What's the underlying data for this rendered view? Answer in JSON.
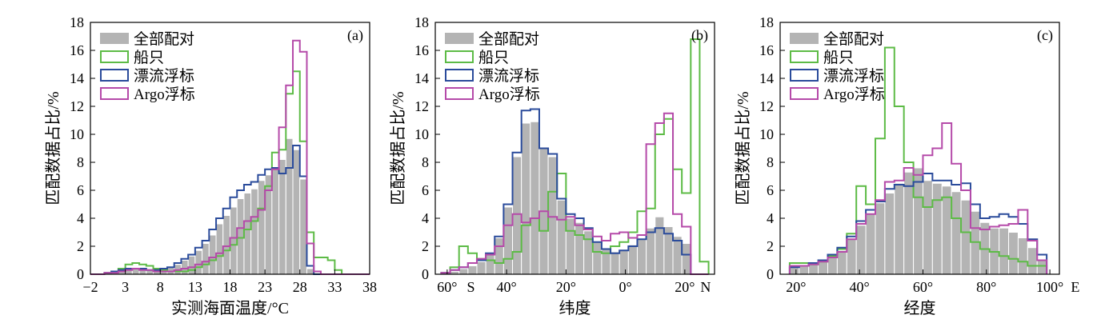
{
  "colors": {
    "all": "#b4b4b4",
    "ship": "#5dbb46",
    "drifter": "#2a4b9b",
    "argo": "#b54aa9"
  },
  "chart_data": [
    {
      "type": "bar",
      "panel_label": "(a)",
      "xlabel": "实测海面温度/°C",
      "ylabel": "匹配数据占比/%",
      "x_range": [
        -2,
        38
      ],
      "ylim": [
        0,
        18
      ],
      "y_ticks": [
        0,
        2,
        4,
        6,
        8,
        10,
        12,
        14,
        16,
        18
      ],
      "x_ticks": [
        {
          "value": -2,
          "label": "−2"
        },
        {
          "value": 3,
          "label": "3"
        },
        {
          "value": 8,
          "label": "8"
        },
        {
          "value": 13,
          "label": "13"
        },
        {
          "value": 18,
          "label": "18"
        },
        {
          "value": 23,
          "label": "23"
        },
        {
          "value": 28,
          "label": "28"
        },
        {
          "value": 33,
          "label": "33"
        },
        {
          "value": 38,
          "label": "38"
        }
      ],
      "bin_edges": [
        -2,
        -1,
        0,
        1,
        2,
        3,
        4,
        5,
        6,
        7,
        8,
        9,
        10,
        11,
        12,
        13,
        14,
        15,
        16,
        17,
        18,
        19,
        20,
        21,
        22,
        23,
        24,
        25,
        26,
        27,
        28,
        29,
        30,
        31,
        32,
        33,
        34,
        35,
        36,
        37,
        38
      ],
      "series": [
        {
          "name": "全部配对",
          "style": "bar",
          "color_key": "all",
          "values": [
            0,
            0,
            0.1,
            0.2,
            0.3,
            0.4,
            0.4,
            0.4,
            0.3,
            0.3,
            0.4,
            0.5,
            0.7,
            1.0,
            1.3,
            1.7,
            2.2,
            2.8,
            3.6,
            4.2,
            4.8,
            5.4,
            5.8,
            6.1,
            6.7,
            7.1,
            7.5,
            8.2,
            9.7,
            8.9,
            6.8,
            0.4,
            0.1,
            0,
            0,
            0,
            0,
            0,
            0,
            0
          ]
        },
        {
          "name": "船只",
          "style": "step",
          "color_key": "ship",
          "values": [
            0,
            0,
            0.1,
            0.2,
            0.4,
            0.7,
            0.8,
            0.7,
            0.6,
            0.4,
            0.3,
            0.2,
            0.2,
            0.2,
            0.3,
            0.5,
            0.7,
            1.0,
            1.3,
            1.7,
            2.1,
            2.6,
            3.2,
            3.8,
            4.7,
            6.3,
            8.7,
            8.9,
            12.9,
            14.5,
            9.5,
            3.0,
            1.2,
            1.2,
            1.0,
            0.3,
            0,
            0,
            0,
            0
          ]
        },
        {
          "name": "漂流浮标",
          "style": "step",
          "color_key": "drifter",
          "values": [
            0,
            0,
            0.1,
            0.2,
            0.3,
            0.4,
            0.4,
            0.4,
            0.3,
            0.3,
            0.4,
            0.5,
            0.8,
            1.1,
            1.4,
            1.9,
            2.4,
            3.2,
            4.0,
            4.7,
            5.5,
            6.0,
            6.4,
            6.6,
            7.1,
            7.5,
            7.6,
            7.2,
            7.6,
            9.2,
            7.0,
            0.6,
            0,
            0,
            0,
            0,
            0,
            0,
            0,
            0
          ]
        },
        {
          "name": "Argo浮标",
          "style": "step",
          "color_key": "argo",
          "values": [
            0,
            0,
            0.1,
            0.1,
            0.2,
            0.3,
            0.4,
            0.3,
            0.3,
            0.2,
            0.2,
            0.2,
            0.3,
            0.4,
            0.5,
            0.7,
            0.9,
            1.2,
            1.5,
            2.0,
            2.6,
            3.3,
            3.8,
            4.1,
            4.6,
            6.0,
            7.5,
            10.5,
            13.5,
            16.7,
            15.9,
            2.2,
            0.2,
            0,
            0,
            0,
            0,
            0,
            0,
            0
          ]
        }
      ]
    },
    {
      "type": "bar",
      "panel_label": "(b)",
      "xlabel": "纬度",
      "ylabel": "匹配数据占比/%",
      "x_range": [
        -64,
        30
      ],
      "ylim": [
        0,
        18
      ],
      "y_ticks": [
        0,
        2,
        4,
        6,
        8,
        10,
        12,
        14,
        16,
        18
      ],
      "x_ticks": [
        {
          "value": -60,
          "label": "60°"
        },
        {
          "value": -40,
          "label": "40°"
        },
        {
          "value": -20,
          "label": "20°"
        },
        {
          "value": 0,
          "label": "0°"
        },
        {
          "value": 20,
          "label": "20°"
        }
      ],
      "x_extra_labels": [
        {
          "value": -52,
          "label": "S"
        },
        {
          "value": 27,
          "label": "N"
        }
      ],
      "bin_edges": [
        -62,
        -59,
        -56,
        -53,
        -50,
        -47,
        -44,
        -41,
        -38,
        -35,
        -32,
        -29,
        -26,
        -23,
        -20,
        -17,
        -14,
        -11,
        -8,
        -5,
        -2,
        1,
        4,
        7,
        10,
        13,
        16,
        19,
        22,
        25,
        28
      ],
      "series": [
        {
          "name": "全部配对",
          "style": "bar",
          "color_key": "all",
          "values": [
            0.1,
            0.2,
            0.4,
            0.6,
            0.9,
            1.4,
            2.6,
            4.8,
            8.4,
            10.8,
            10.9,
            9.0,
            8.4,
            5.3,
            4.0,
            3.7,
            3.1,
            2.3,
            1.8,
            1.6,
            1.7,
            2.1,
            2.5,
            3.3,
            4.1,
            3.4,
            2.7,
            2.2,
            0,
            0
          ]
        },
        {
          "name": "船只",
          "style": "step",
          "color_key": "ship",
          "values": [
            0.1,
            0.5,
            2.0,
            1.5,
            1.1,
            1.0,
            0.8,
            1.1,
            1.6,
            3.5,
            4.0,
            3.1,
            5.9,
            7.2,
            3.1,
            2.8,
            2.5,
            1.6,
            1.5,
            2.0,
            2.3,
            3.0,
            4.5,
            4.7,
            10.0,
            11.1,
            7.5,
            5.8,
            16.8,
            0.9
          ]
        },
        {
          "name": "漂流浮标",
          "style": "step",
          "color_key": "drifter",
          "values": [
            0.1,
            0.3,
            0.5,
            0.8,
            1.0,
            1.5,
            2.7,
            5.0,
            8.7,
            11.7,
            11.8,
            9.0,
            8.6,
            5.4,
            4.3,
            4.0,
            3.3,
            2.3,
            1.8,
            1.5,
            1.7,
            2.0,
            2.5,
            3.0,
            3.3,
            2.9,
            2.4,
            1.4,
            0,
            0
          ]
        },
        {
          "name": "Argo浮标",
          "style": "step",
          "color_key": "argo",
          "values": [
            0.1,
            0.3,
            0.5,
            0.8,
            1.1,
            1.4,
            2.0,
            3.5,
            4.3,
            3.7,
            4.0,
            4.5,
            4.1,
            3.9,
            4.1,
            3.5,
            3.2,
            2.7,
            2.4,
            2.9,
            3.0,
            2.6,
            2.8,
            9.3,
            10.8,
            11.5,
            4.3,
            3.4,
            0,
            0
          ]
        }
      ]
    },
    {
      "type": "bar",
      "panel_label": "(c)",
      "xlabel": "经度",
      "ylabel": "匹配数据占比/%",
      "x_range": [
        15,
        103
      ],
      "ylim": [
        0,
        18
      ],
      "y_ticks": [
        0,
        2,
        4,
        6,
        8,
        10,
        12,
        14,
        16,
        18
      ],
      "x_ticks": [
        {
          "value": 20,
          "label": "20°"
        },
        {
          "value": 40,
          "label": "40°"
        },
        {
          "value": 60,
          "label": "60°"
        },
        {
          "value": 80,
          "label": "80°"
        },
        {
          "value": 100,
          "label": "100°"
        }
      ],
      "x_extra_labels": [
        {
          "value": 108,
          "label": "E"
        }
      ],
      "bin_edges": [
        18,
        21,
        24,
        27,
        30,
        33,
        36,
        39,
        42,
        45,
        48,
        51,
        54,
        57,
        60,
        63,
        66,
        69,
        72,
        75,
        78,
        81,
        84,
        87,
        90,
        93,
        96,
        99
      ],
      "series": [
        {
          "name": "全部配对",
          "style": "bar",
          "color_key": "all",
          "values": [
            0.5,
            0.6,
            0.8,
            1.0,
            1.3,
            1.7,
            2.5,
            3.5,
            4.3,
            5.1,
            5.8,
            6.5,
            7.3,
            7.6,
            6.7,
            6.5,
            6.3,
            5.9,
            5.3,
            4.5,
            3.7,
            3.3,
            3.3,
            3.0,
            2.6,
            1.9,
            1.0
          ]
        },
        {
          "name": "船只",
          "style": "step",
          "color_key": "ship",
          "values": [
            0.8,
            0.8,
            0.7,
            0.9,
            1.3,
            1.8,
            2.9,
            6.3,
            5.0,
            9.7,
            16.2,
            12.0,
            8.0,
            5.5,
            4.8,
            5.3,
            5.5,
            4.0,
            3.0,
            2.3,
            1.8,
            1.6,
            1.3,
            1.1,
            0.9,
            0.6,
            0.6
          ]
        },
        {
          "name": "漂流浮标",
          "style": "step",
          "color_key": "drifter",
          "values": [
            0.5,
            0.6,
            0.8,
            1.0,
            1.4,
            1.9,
            2.7,
            3.8,
            4.6,
            5.2,
            6.1,
            6.4,
            6.3,
            6.6,
            7.2,
            6.7,
            6.7,
            6.4,
            6.5,
            5.0,
            4.0,
            4.1,
            4.3,
            4.1,
            3.6,
            2.5,
            1.4
          ]
        },
        {
          "name": "Argo浮标",
          "style": "step",
          "color_key": "argo",
          "values": [
            0.6,
            0.6,
            0.7,
            0.9,
            1.2,
            1.6,
            2.5,
            3.6,
            4.3,
            5.3,
            6.6,
            6.7,
            7.6,
            7.1,
            8.5,
            9.0,
            10.8,
            7.9,
            6.0,
            3.3,
            3.2,
            3.4,
            3.5,
            3.6,
            4.6,
            2.4,
            1.0
          ]
        }
      ]
    }
  ]
}
